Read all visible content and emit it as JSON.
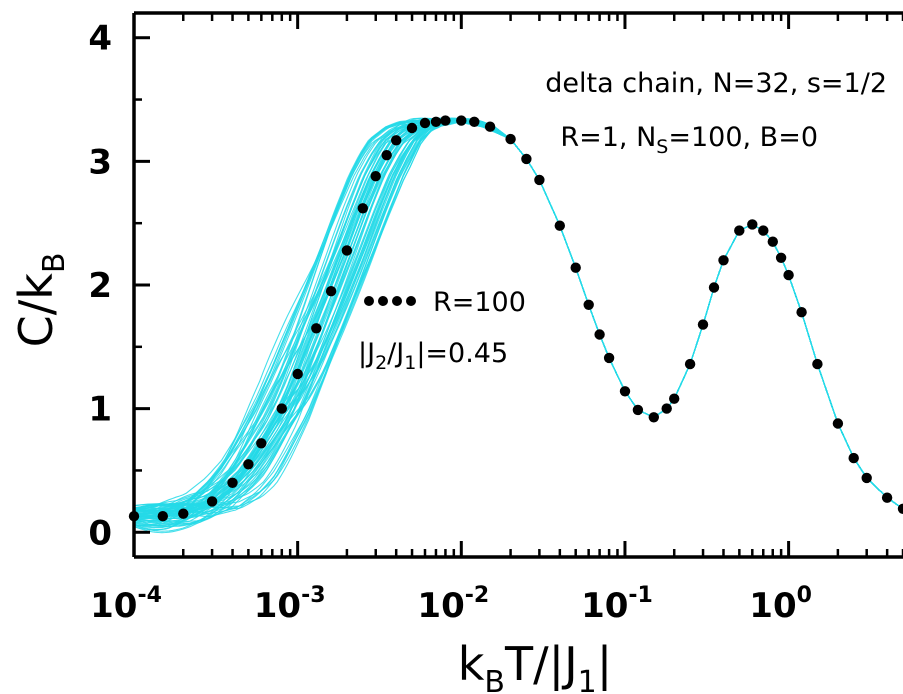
{
  "chart_data": {
    "type": "line",
    "xscale": "log",
    "xlim": [
      0.0001,
      5
    ],
    "ylim": [
      -0.2,
      4.2
    ],
    "grid": false,
    "xticks": [
      {
        "value": 0.0001,
        "base": "10",
        "exp": "-4"
      },
      {
        "value": 0.001,
        "base": "10",
        "exp": "-3"
      },
      {
        "value": 0.01,
        "base": "10",
        "exp": "-2"
      },
      {
        "value": 0.1,
        "base": "10",
        "exp": "-1"
      },
      {
        "value": 1,
        "base": "10",
        "exp": "0"
      }
    ],
    "yticks": [
      {
        "value": 0,
        "label": "0"
      },
      {
        "value": 1,
        "label": "1"
      },
      {
        "value": 2,
        "label": "2"
      },
      {
        "value": 3,
        "label": "3"
      },
      {
        "value": 4,
        "label": "4"
      }
    ],
    "xlabel": {
      "a": "k",
      "a_sub": "B",
      "b": "T/|J",
      "b_sub": "1",
      "c": "|"
    },
    "ylabel": {
      "a": "C/k",
      "a_sub": "B"
    },
    "annotations": {
      "line1": "delta chain, N=32, s=1/2",
      "line2_a": "R=1, N",
      "line2_sub": "S",
      "line2_b": "=100, B=0",
      "legend_label": "R=100",
      "legend2_a": "|J",
      "legend2_sub1": "2",
      "legend2_b": "/J",
      "legend2_sub2": "1",
      "legend2_c": "|=0.45"
    },
    "series": [
      {
        "name": "R=100",
        "style": "dotted",
        "color": "#000000",
        "x": [
          0.0001,
          0.00015,
          0.0002,
          0.0003,
          0.0004,
          0.0005,
          0.0006,
          0.0008,
          0.001,
          0.0013,
          0.0016,
          0.002,
          0.0025,
          0.003,
          0.0035,
          0.004,
          0.005,
          0.006,
          0.007,
          0.008,
          0.01,
          0.012,
          0.015,
          0.02,
          0.025,
          0.03,
          0.04,
          0.05,
          0.06,
          0.07,
          0.08,
          0.1,
          0.12,
          0.15,
          0.18,
          0.2,
          0.25,
          0.3,
          0.35,
          0.4,
          0.5,
          0.6,
          0.7,
          0.8,
          0.9,
          1.0,
          1.2,
          1.5,
          2.0,
          2.5,
          3.0,
          4.0,
          5.0
        ],
        "y": [
          0.13,
          0.13,
          0.15,
          0.25,
          0.4,
          0.55,
          0.72,
          1.0,
          1.28,
          1.65,
          1.95,
          2.28,
          2.62,
          2.88,
          3.05,
          3.17,
          3.27,
          3.31,
          3.32,
          3.33,
          3.33,
          3.32,
          3.28,
          3.18,
          3.02,
          2.85,
          2.48,
          2.14,
          1.84,
          1.6,
          1.41,
          1.14,
          0.99,
          0.93,
          1.0,
          1.08,
          1.36,
          1.68,
          1.98,
          2.2,
          2.44,
          2.49,
          2.44,
          2.35,
          2.22,
          2.08,
          1.78,
          1.36,
          0.88,
          0.6,
          0.44,
          0.28,
          0.19
        ]
      }
    ],
    "colors": {
      "dotted": "#000000",
      "realizations": "#25d9e8",
      "axis": "#000000"
    }
  }
}
